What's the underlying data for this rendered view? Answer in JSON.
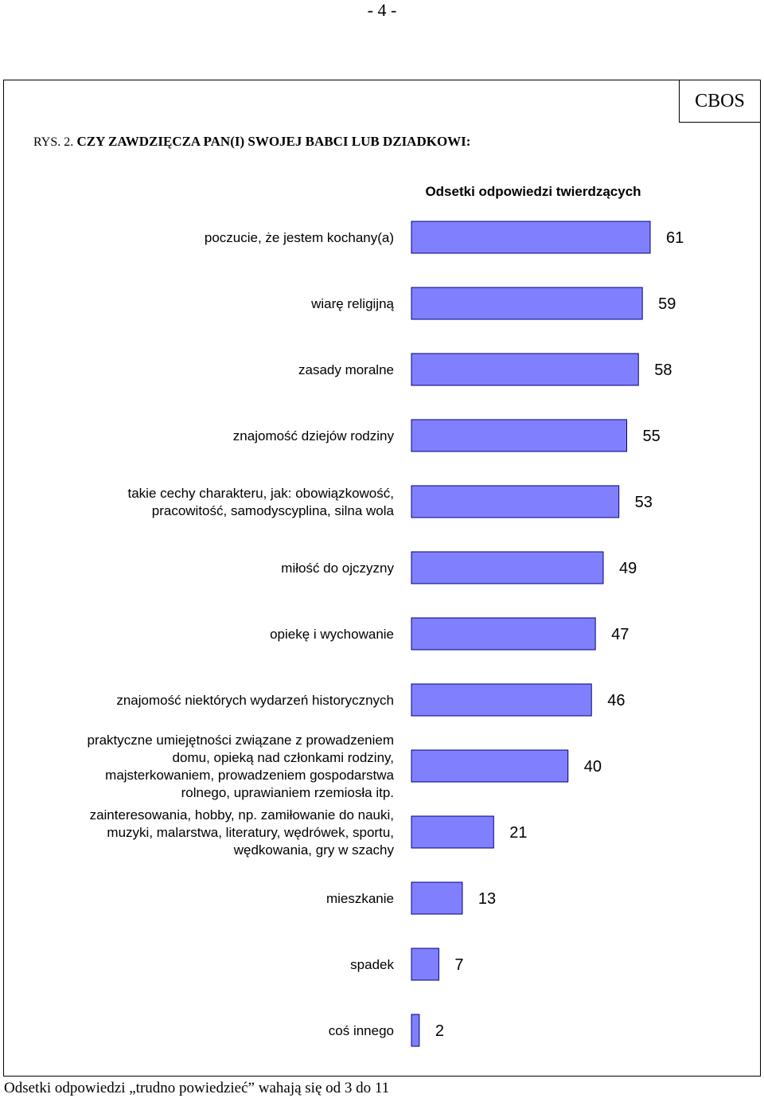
{
  "page": {
    "number": "- 4 -"
  },
  "badge": {
    "label": "CBOS"
  },
  "figure": {
    "label": "RYS. 2.",
    "title": "CZY ZAWDZIĘCZA PAN(I) SWOJEJ BABCI LUB DZIADKOWI:"
  },
  "footnote": "Odsetki odpowiedzi „trudno powiedzieć” wahają się od 3 do 11",
  "chart_data": {
    "type": "bar",
    "orientation": "horizontal",
    "subtitle": "Odsetki odpowiedzi twierdzących",
    "categories": [
      "poczucie, że jestem kochany(a)",
      "wiarę religijną",
      "zasady moralne",
      "znajomość dziejów rodziny",
      "takie cechy charakteru, jak: obowiązkowość, pracowitość, samodyscyplina, silna wola",
      "miłość do ojczyzny",
      "opiekę i wychowanie",
      "znajomość niektórych wydarzeń historycznych",
      "praktyczne umiejętności związane z prowadzeniem domu, opieką nad członkami rodziny, majsterkowaniem, prowadzeniem gospodarstwa rolnego, uprawianiem rzemiosła itp.",
      "zainteresowania, hobby, np. zamiłowanie do nauki, muzyki, malarstwa, literatury, wędrówek, sportu, wędkowania, gry w szachy",
      "mieszkanie",
      "spadek",
      "coś innego"
    ],
    "category_lines": [
      [
        "poczucie, że jestem kochany(a)"
      ],
      [
        "wiarę religijną"
      ],
      [
        "zasady moralne"
      ],
      [
        "znajomość dziejów rodziny"
      ],
      [
        "takie cechy charakteru, jak: obowiązkowość,",
        "pracowitość, samodyscyplina, silna wola"
      ],
      [
        "miłość do ojczyzny"
      ],
      [
        "opiekę i wychowanie"
      ],
      [
        "znajomość niektórych wydarzeń historycznych"
      ],
      [
        "praktyczne umiejętności związane z prowadzeniem",
        "domu, opieką nad członkami rodziny,",
        "majsterkowaniem, prowadzeniem gospodarstwa",
        "rolnego, uprawianiem rzemiosła itp."
      ],
      [
        "zainteresowania, hobby, np. zamiłowanie do nauki,",
        "muzyki, malarstwa, literatury, wędrówek, sportu,",
        "wędkowania, gry w szachy"
      ],
      [
        "mieszkanie"
      ],
      [
        "spadek"
      ],
      [
        "coś innego"
      ]
    ],
    "values": [
      61,
      59,
      58,
      55,
      53,
      49,
      47,
      46,
      40,
      21,
      13,
      7,
      2
    ],
    "xlim": [
      0,
      61
    ],
    "bar_color": "#8080ff",
    "bar_border": "#000080",
    "data_labels": true,
    "grid": false,
    "legend": "none"
  }
}
